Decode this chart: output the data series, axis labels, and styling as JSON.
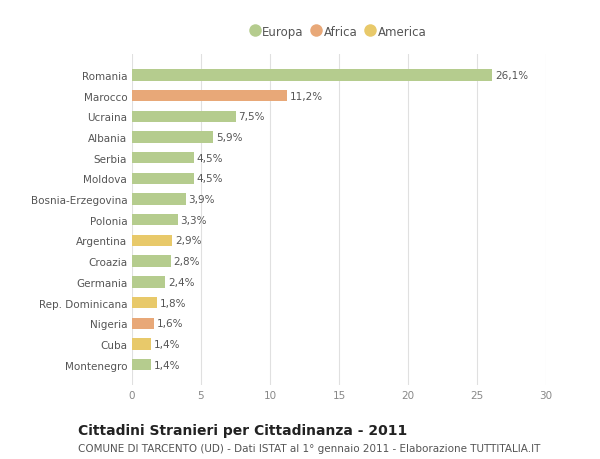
{
  "categories": [
    "Montenegro",
    "Cuba",
    "Nigeria",
    "Rep. Dominicana",
    "Germania",
    "Croazia",
    "Argentina",
    "Polonia",
    "Bosnia-Erzegovina",
    "Moldova",
    "Serbia",
    "Albania",
    "Ucraina",
    "Marocco",
    "Romania"
  ],
  "values": [
    1.4,
    1.4,
    1.6,
    1.8,
    2.4,
    2.8,
    2.9,
    3.3,
    3.9,
    4.5,
    4.5,
    5.9,
    7.5,
    11.2,
    26.1
  ],
  "labels": [
    "1,4%",
    "1,4%",
    "1,6%",
    "1,8%",
    "2,4%",
    "2,8%",
    "2,9%",
    "3,3%",
    "3,9%",
    "4,5%",
    "4,5%",
    "5,9%",
    "7,5%",
    "11,2%",
    "26,1%"
  ],
  "colors": [
    "#b5cc8e",
    "#e8c96a",
    "#e8a878",
    "#e8c96a",
    "#b5cc8e",
    "#b5cc8e",
    "#e8c96a",
    "#b5cc8e",
    "#b5cc8e",
    "#b5cc8e",
    "#b5cc8e",
    "#b5cc8e",
    "#b5cc8e",
    "#e8a878",
    "#b5cc8e"
  ],
  "legend": [
    {
      "label": "Europa",
      "color": "#b5cc8e"
    },
    {
      "label": "Africa",
      "color": "#e8a878"
    },
    {
      "label": "America",
      "color": "#e8c96a"
    }
  ],
  "xlim": [
    0,
    30
  ],
  "xticks": [
    0,
    5,
    10,
    15,
    20,
    25,
    30
  ],
  "title": "Cittadini Stranieri per Cittadinanza - 2011",
  "subtitle": "COMUNE DI TARCENTO (UD) - Dati ISTAT al 1° gennaio 2011 - Elaborazione TUTTITALIA.IT",
  "bg_color": "#ffffff",
  "grid_color": "#e0e0e0",
  "bar_height": 0.55,
  "label_fontsize": 7.5,
  "tick_fontsize": 7.5,
  "title_fontsize": 10,
  "subtitle_fontsize": 7.5
}
